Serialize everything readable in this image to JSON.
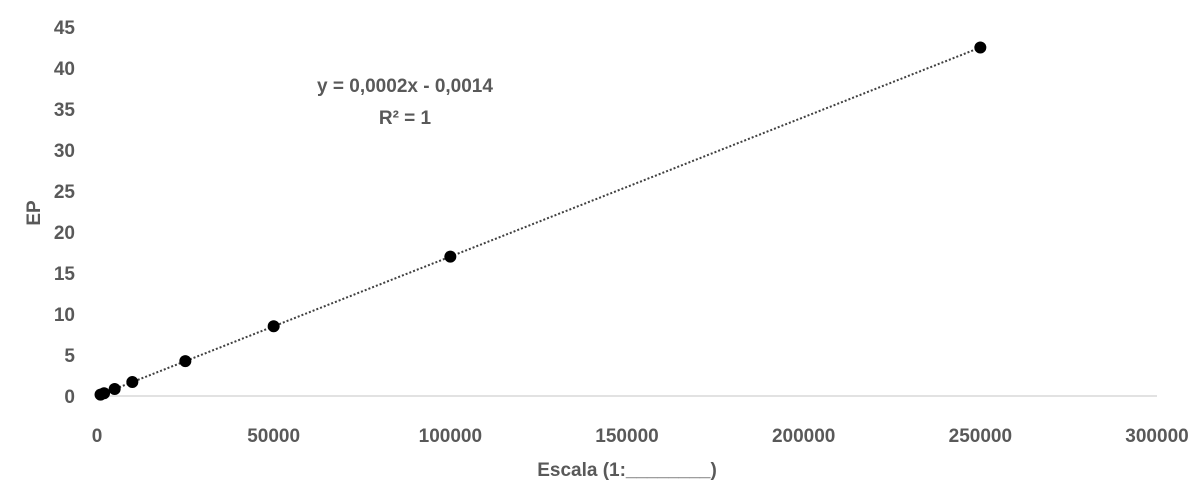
{
  "chart_data": {
    "type": "scatter",
    "title": "",
    "xlabel": "Escala (1:________)",
    "ylabel": "EP",
    "xlim": [
      0,
      300000
    ],
    "ylim": [
      0,
      45
    ],
    "xticks": [
      0,
      50000,
      100000,
      150000,
      200000,
      250000,
      300000
    ],
    "yticks": [
      0,
      5,
      10,
      15,
      20,
      25,
      30,
      35,
      40,
      45
    ],
    "grid": false,
    "legend": "none",
    "series": [
      {
        "marker_color": "#000000",
        "x": [
          1000,
          2000,
          5000,
          10000,
          25000,
          50000,
          100000,
          250000
        ],
        "y": [
          0.17,
          0.34,
          0.85,
          1.7,
          4.25,
          8.5,
          17,
          42.5
        ]
      }
    ],
    "trendline": {
      "style": "dotted",
      "color": "#404040",
      "slope": 0.00017,
      "intercept": -0.0014,
      "equation": "y = 0,0002x - 0,0014",
      "r_squared": "R² = 1"
    }
  }
}
